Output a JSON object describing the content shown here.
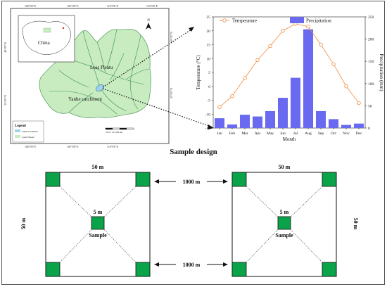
{
  "map": {
    "lon_labels": [
      "100°0'0\"E",
      "105°0'0\"E",
      "110°0'0\"E",
      "115°0'0\"E"
    ],
    "lat_labels": [
      "40°0'0\"N",
      "35°0'0\"N"
    ],
    "inset_label": "China",
    "region_label_1": "Loss Pleatu",
    "region_label_2": "Yanhe catchment",
    "legend_title": "Legend",
    "legend_items": [
      {
        "label": "Yanhe Catchment",
        "color": "#9fd3ec"
      },
      {
        "label": "Loess Plateau",
        "color": "#c8ecc0"
      }
    ],
    "scale_label": "0  62.5  125       250 km",
    "north_label": "N"
  },
  "chart_data": {
    "type": "bar+line",
    "categories": [
      "Jan",
      "Feb",
      "Mar",
      "Apr",
      "May",
      "Jun",
      "Jul",
      "Aug",
      "Sep",
      "Oct",
      "Nov",
      "Dec"
    ],
    "series": [
      {
        "name": "Temperature",
        "kind": "line",
        "axis": "left",
        "color": "#f08a3c",
        "values": [
          -7.5,
          -3.5,
          3,
          9.5,
          14.5,
          20,
          22.5,
          21.5,
          15,
          8,
          0,
          -6
        ]
      },
      {
        "name": "Precipitation",
        "kind": "bar",
        "axis": "right",
        "color": "#6a6af0",
        "values": [
          22,
          8,
          30,
          26,
          38,
          68,
          113,
          222,
          38,
          20,
          7,
          10
        ]
      }
    ],
    "ylabel_left": "Temperature (°C)",
    "ylabel_right": "Precipitation (mm)",
    "xlabel": "Month",
    "ylim_left": [
      -15,
      25
    ],
    "yticks_left": [
      -15,
      -10,
      -5,
      0,
      5,
      10,
      15,
      20,
      25
    ],
    "ylim_right": [
      0,
      250
    ],
    "yticks_right": [
      0,
      50,
      100,
      150,
      200,
      250
    ],
    "legend_placement": "top",
    "grid": false
  },
  "design": {
    "title": "Sample design",
    "width_label": "50 m",
    "height_label": "50 m",
    "center_label": "5 m",
    "sample_label": "Sample",
    "spacing_label": "1000 m",
    "quadrat_color": "#0aa34a"
  },
  "colors": {
    "plateau_fill": "#c8ecc0",
    "catchment_fill": "#9fd3ec",
    "river": "#3b8e56"
  }
}
